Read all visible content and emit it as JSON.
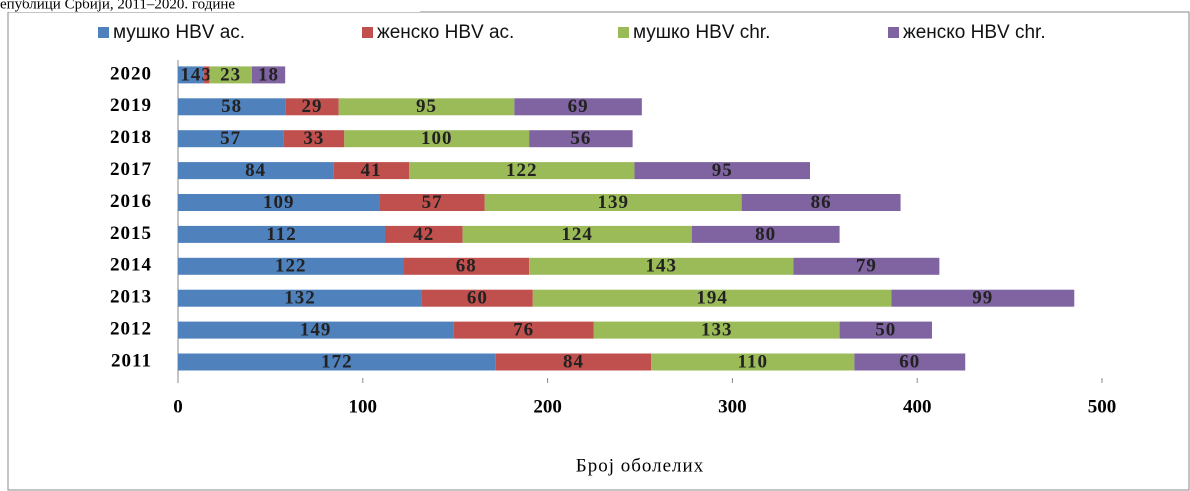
{
  "caption": "епублици Србији, 2011–2020. године",
  "chart_data": {
    "type": "stacked_barh",
    "categories": [
      "2011",
      "2012",
      "2013",
      "2014",
      "2015",
      "2016",
      "2017",
      "2018",
      "2019",
      "2020"
    ],
    "series": [
      {
        "name": "мушко HBV ac.",
        "color": "#4f81bd",
        "values": [
          172,
          149,
          132,
          122,
          112,
          109,
          84,
          57,
          58,
          14
        ]
      },
      {
        "name": "женско HBV ac.",
        "color": "#c0504d",
        "values": [
          84,
          76,
          60,
          68,
          42,
          57,
          41,
          33,
          29,
          3
        ]
      },
      {
        "name": "мушко HBV chr.",
        "color": "#9bbb59",
        "values": [
          110,
          133,
          194,
          143,
          124,
          139,
          122,
          100,
          95,
          23
        ]
      },
      {
        "name": "женско HBV chr.",
        "color": "#8064a2",
        "values": [
          60,
          50,
          99,
          79,
          80,
          86,
          95,
          56,
          69,
          18
        ]
      }
    ],
    "xlim": [
      0,
      500
    ],
    "xticks": [
      0,
      100,
      200,
      300,
      400,
      500
    ],
    "xlabel": "Број оболелих",
    "legend": "top"
  }
}
